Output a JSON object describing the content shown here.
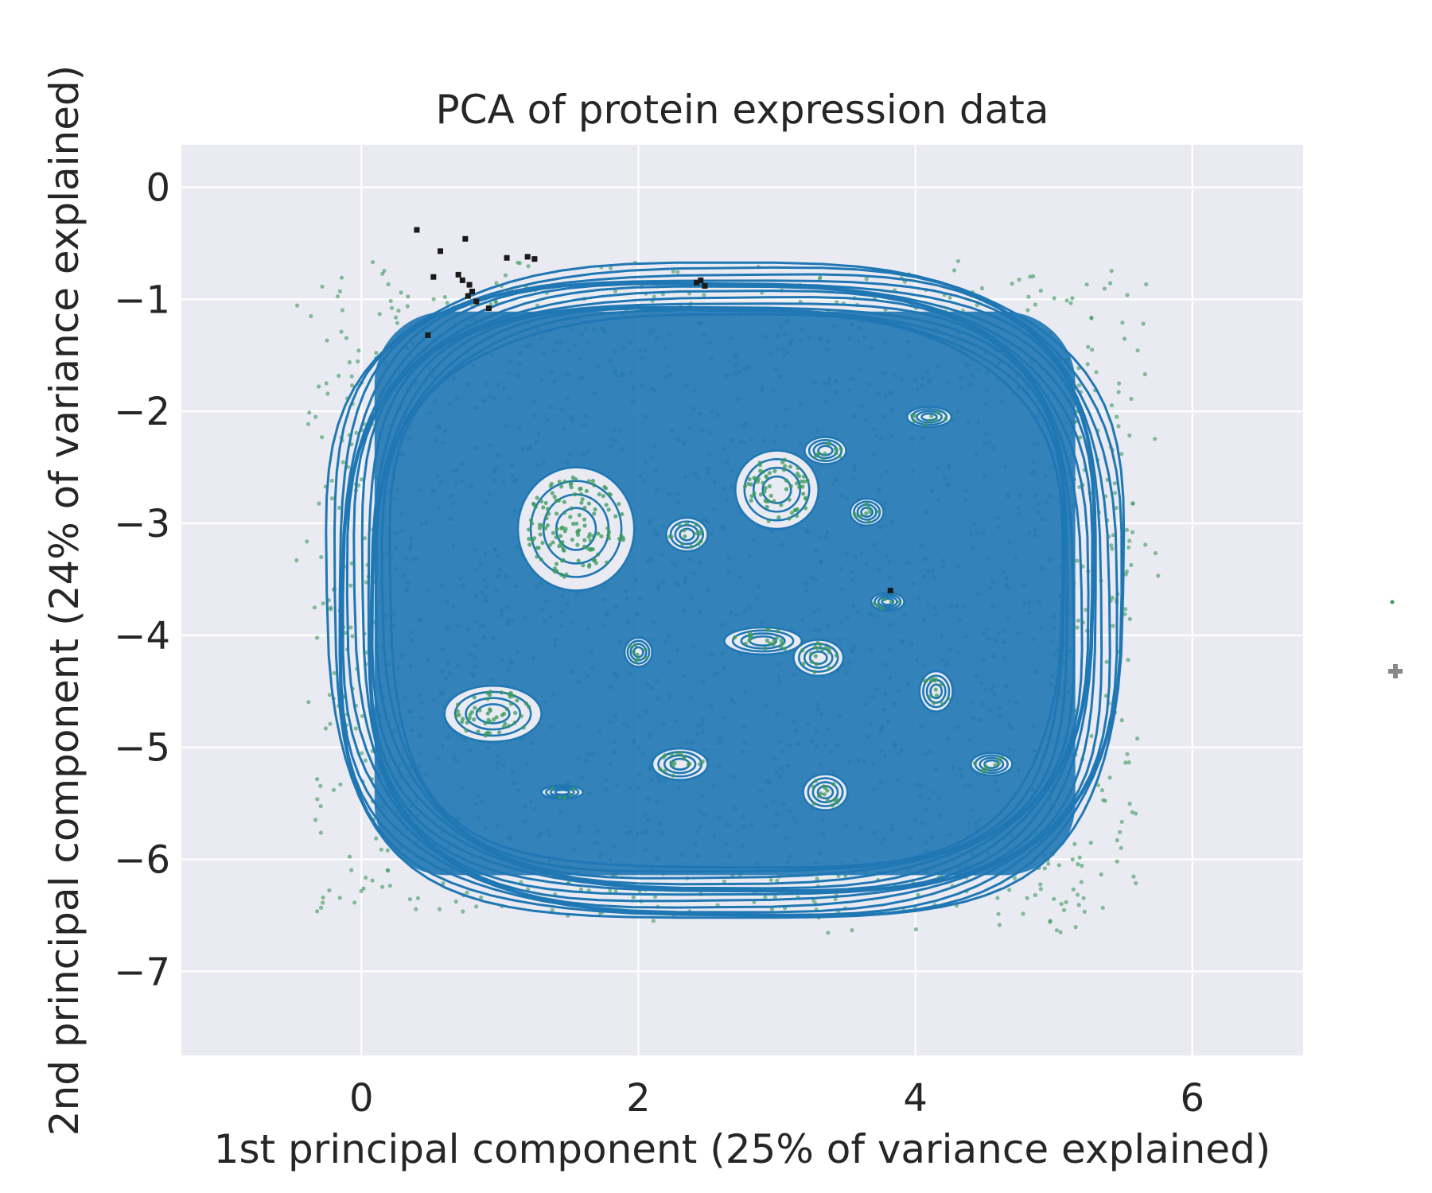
{
  "chart_data": {
    "type": "scatter",
    "title": "PCA of protein expression data",
    "xlabel": "1st principal component (25% of variance explained)",
    "ylabel": "2nd principal component (24% of variance explained)",
    "xlim": [
      -1.3,
      6.8
    ],
    "ylim": [
      -7.75,
      0.38
    ],
    "xticks": [
      0,
      2,
      4,
      6
    ],
    "yticks": [
      0,
      -1,
      -2,
      -3,
      -4,
      -5,
      -6,
      -7
    ],
    "grid": true,
    "background": "#EAEAF2",
    "colors": {
      "points": "#3A9A5B",
      "contour": "#1F77B4",
      "markers": "#1A1A1A",
      "legend_marker": "#888888"
    },
    "series": [
      {
        "kind": "scatter-cloud",
        "count_estimate": 6000,
        "extent": {
          "x": [
            -0.5,
            6.0
          ],
          "y": [
            -6.9,
            -0.45
          ]
        }
      },
      {
        "kind": "kde-contour",
        "outer_extent": {
          "x": [
            -0.25,
            5.5
          ],
          "y": [
            -6.55,
            -0.7
          ]
        }
      },
      {
        "kind": "black-markers",
        "points": [
          [
            0.4,
            -0.38
          ],
          [
            0.57,
            -0.57
          ],
          [
            0.75,
            -0.46
          ],
          [
            0.7,
            -0.78
          ],
          [
            0.73,
            -0.83
          ],
          [
            0.78,
            -0.87
          ],
          [
            0.8,
            -0.93
          ],
          [
            0.77,
            -0.97
          ],
          [
            0.83,
            -1.02
          ],
          [
            1.05,
            -0.63
          ],
          [
            1.2,
            -0.62
          ],
          [
            1.25,
            -0.64
          ],
          [
            2.42,
            -0.85
          ],
          [
            2.45,
            -0.83
          ],
          [
            2.48,
            -0.88
          ],
          [
            0.52,
            -0.8
          ],
          [
            0.92,
            -1.08
          ],
          [
            0.48,
            -1.32
          ],
          [
            3.82,
            -3.6
          ]
        ]
      }
    ]
  }
}
